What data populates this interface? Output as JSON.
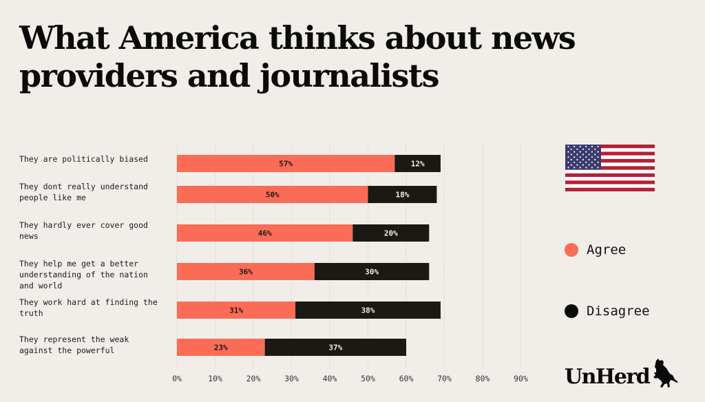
{
  "title": "What America thinks about news providers and journalists",
  "colors": {
    "agree": "#fb6c56",
    "disagree": "#1a1914",
    "background": "#f1eeea",
    "grid": "#dcd8d2"
  },
  "legend": [
    {
      "label": "Agree",
      "color": "#fb6c56"
    },
    {
      "label": "Disagree",
      "color": "#0a0a0a"
    }
  ],
  "brand": {
    "name": "UnHerd",
    "mascot_icon": "bull-icon",
    "flag_icon": "us-flag-icon"
  },
  "chart_data": {
    "type": "bar",
    "orientation": "horizontal",
    "stacked": true,
    "title": "What America thinks about news providers and journalists",
    "categories": [
      [
        "They are politically biased"
      ],
      [
        "They dont really understand",
        "people like me"
      ],
      [
        "They hardly ever cover good",
        "news"
      ],
      [
        "They help me get a better",
        "understanding of the nation",
        "and world"
      ],
      [
        "They work hard at finding the",
        "truth"
      ],
      [
        "They represent the weak",
        "against the powerful"
      ]
    ],
    "series": [
      {
        "name": "Agree",
        "values": [
          57,
          50,
          46,
          36,
          31,
          23
        ]
      },
      {
        "name": "Disagree",
        "values": [
          12,
          18,
          20,
          30,
          38,
          37
        ]
      }
    ],
    "value_format": "{v}%",
    "xlim": [
      0,
      90
    ],
    "xticks": [
      0,
      10,
      20,
      30,
      40,
      50,
      60,
      70,
      80,
      90
    ],
    "xtick_labels": [
      "0%",
      "10%",
      "20%",
      "30%",
      "40%",
      "50%",
      "60%",
      "70%",
      "80%",
      "90%"
    ],
    "grid": true,
    "legend_position": "right",
    "xlabel": "",
    "ylabel": ""
  }
}
